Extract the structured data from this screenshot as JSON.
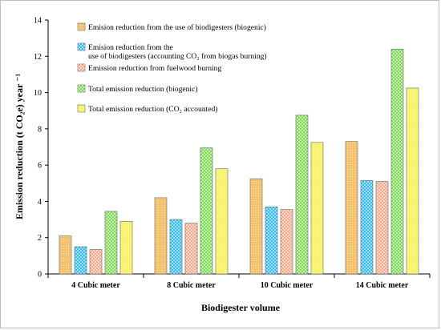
{
  "chart_data": {
    "type": "bar",
    "categories": [
      "4 Cubic meter",
      "8 Cubic meter",
      "10 Cubic meter",
      "14 Cubic meter"
    ],
    "series": [
      {
        "name": "Emision reduction from the use of biodigesters (biogenic)",
        "values": [
          2.1,
          4.2,
          5.25,
          7.3
        ],
        "color": "#f5c26b",
        "pattern": "dots"
      },
      {
        "name": "Emision reduction from the use of biodigesters (accounting CO₂ from biogas burning)",
        "values": [
          1.5,
          3.0,
          3.7,
          5.15
        ],
        "color": "#33bbee",
        "pattern": "checker"
      },
      {
        "name": "Emission reduction from fuelwood burning",
        "values": [
          1.35,
          2.8,
          3.55,
          5.1
        ],
        "color": "#f4a98a",
        "pattern": "checker"
      },
      {
        "name": "Total emission reduction (biogenic)",
        "values": [
          3.45,
          6.95,
          8.75,
          12.4
        ],
        "color": "#7ed957",
        "pattern": "checker"
      },
      {
        "name": "Total emission reduction (CO₂ accounted)",
        "values": [
          2.9,
          5.8,
          7.25,
          10.25
        ],
        "color": "#f7f36b",
        "pattern": "dots"
      }
    ],
    "xlabel": "Biodigester volume",
    "ylabel": "Emission reduction (t CO₂e) year ⁻¹",
    "ylim": [
      0,
      14
    ],
    "yticks": [
      0,
      2,
      4,
      6,
      8,
      10,
      12,
      14
    ],
    "grid": false,
    "legend": "top-left inside plot"
  }
}
